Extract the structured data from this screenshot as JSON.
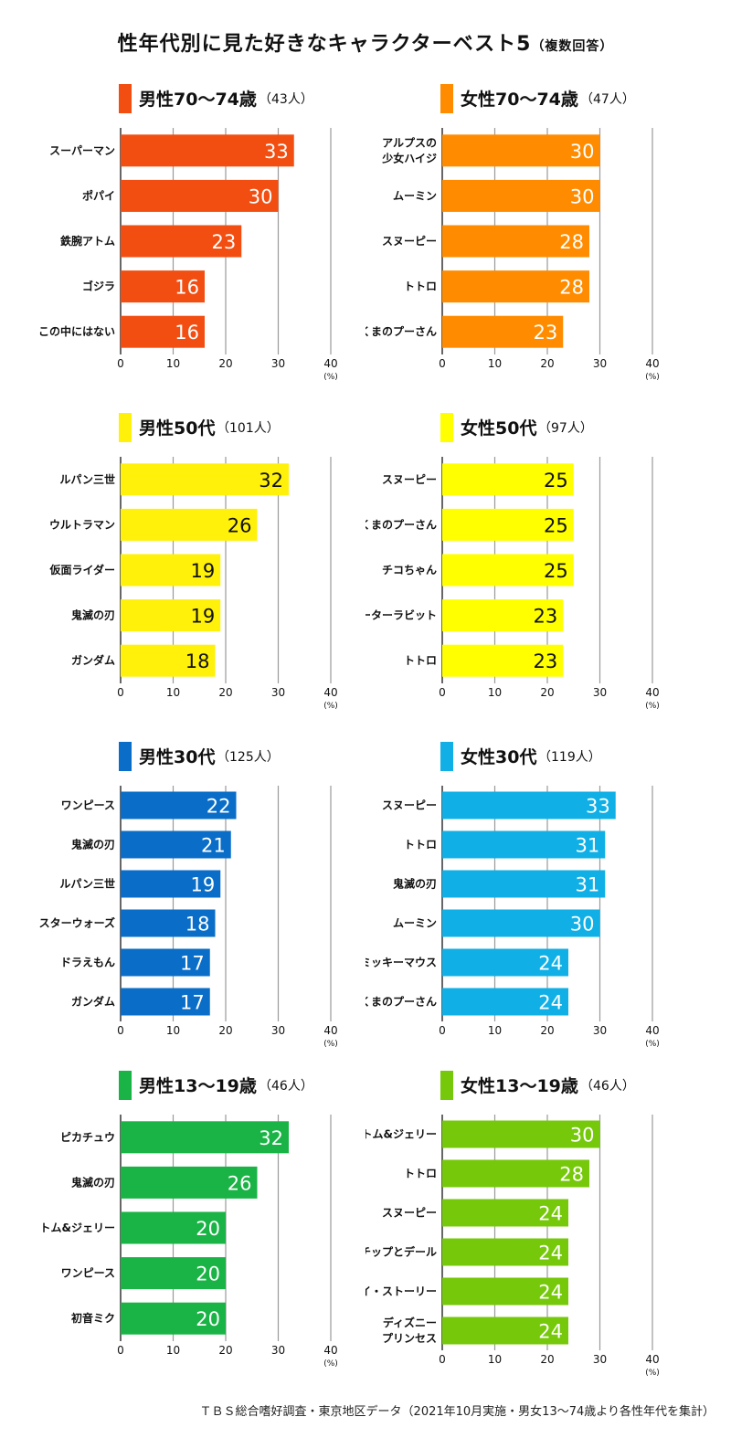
{
  "title": {
    "main": "性年代別に見た好きなキャラクターベスト5",
    "sub": "（複数回答）"
  },
  "footer": "ＴＢＳ総合嗜好調査・東京地区データ（2021年10月実施・男女13〜74歳より各性年代を集計）",
  "axis": {
    "ticks": [
      0,
      10,
      20,
      30,
      40
    ],
    "unit": "(%)"
  },
  "chart_data": [
    {
      "type": "bar",
      "orientation": "horizontal",
      "title": "男性70〜74歳",
      "count_label": "（43人）",
      "color": "#f24e12",
      "categories": [
        "スーパーマン",
        "ポパイ",
        "鉄腕アトム",
        "ゴジラ",
        "この中にはない"
      ],
      "values": [
        33,
        30,
        23,
        16,
        16
      ],
      "xlim": [
        0,
        40
      ],
      "xlabel": "(%)",
      "grid": true
    },
    {
      "type": "bar",
      "orientation": "horizontal",
      "title": "女性70〜74歳",
      "count_label": "（47人）",
      "color": "#ff8c00",
      "categories": [
        "アルプスの\n少女ハイジ",
        "ムーミン",
        "スヌーピー",
        "トトロ",
        "くまのプーさん"
      ],
      "values": [
        30,
        30,
        28,
        28,
        23
      ],
      "xlim": [
        0,
        40
      ],
      "xlabel": "(%)",
      "grid": true
    },
    {
      "type": "bar",
      "orientation": "horizontal",
      "title": "男性50代",
      "count_label": "（101人）",
      "color": "#fff10a",
      "categories": [
        "ルパン三世",
        "ウルトラマン",
        "仮面ライダー",
        "鬼滅の刃",
        "ガンダム"
      ],
      "values": [
        32,
        26,
        19,
        19,
        18
      ],
      "xlim": [
        0,
        40
      ],
      "xlabel": "(%)",
      "grid": true
    },
    {
      "type": "bar",
      "orientation": "horizontal",
      "title": "女性50代",
      "count_label": "（97人）",
      "color": "#ffff00",
      "categories": [
        "スヌーピー",
        "くまのプーさん",
        "チコちゃん",
        "ピーターラビット",
        "トトロ"
      ],
      "values": [
        25,
        25,
        25,
        23,
        23
      ],
      "xlim": [
        0,
        40
      ],
      "xlabel": "(%)",
      "grid": true
    },
    {
      "type": "bar",
      "orientation": "horizontal",
      "title": "男性30代",
      "count_label": "（125人）",
      "color": "#0a6ec8",
      "categories": [
        "ワンピース",
        "鬼滅の刃",
        "ルパン三世",
        "スターウォーズ",
        "ドラえもん",
        "ガンダム"
      ],
      "values": [
        22,
        21,
        19,
        18,
        17,
        17
      ],
      "xlim": [
        0,
        40
      ],
      "xlabel": "(%)",
      "grid": true
    },
    {
      "type": "bar",
      "orientation": "horizontal",
      "title": "女性30代",
      "count_label": "（119人）",
      "color": "#10b0e6",
      "categories": [
        "スヌーピー",
        "トトロ",
        "鬼滅の刃",
        "ムーミン",
        "ミッキーマウス",
        "くまのプーさん"
      ],
      "values": [
        33,
        31,
        31,
        30,
        24,
        24
      ],
      "xlim": [
        0,
        40
      ],
      "xlabel": "(%)",
      "grid": true
    },
    {
      "type": "bar",
      "orientation": "horizontal",
      "title": "男性13〜19歳",
      "count_label": "（46人）",
      "color": "#1ab345",
      "categories": [
        "ピカチュウ",
        "鬼滅の刃",
        "トム&ジェリー",
        "ワンピース",
        "初音ミク"
      ],
      "values": [
        32,
        26,
        20,
        20,
        20
      ],
      "xlim": [
        0,
        40
      ],
      "xlabel": "(%)",
      "grid": true
    },
    {
      "type": "bar",
      "orientation": "horizontal",
      "title": "女性13〜19歳",
      "count_label": "（46人）",
      "color": "#76c80a",
      "categories": [
        "トム&ジェリー",
        "トトロ",
        "スヌーピー",
        "チップとデール",
        "トイ・ストーリー",
        "ディズニー\nプリンセス"
      ],
      "values": [
        30,
        28,
        24,
        24,
        24,
        24
      ],
      "xlim": [
        0,
        40
      ],
      "xlabel": "(%)",
      "grid": true
    }
  ]
}
